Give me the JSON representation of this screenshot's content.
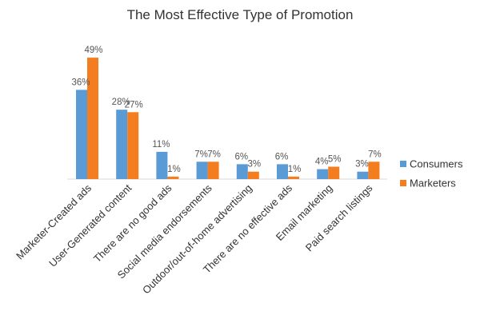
{
  "chart_data": {
    "type": "bar",
    "title": "The Most Effective Type of Promotion",
    "categories": [
      "Marketer-Created ads",
      "User-Generated content",
      "There are no good ads",
      "Social media endorsements",
      "Outdoor/out-of-home advertising",
      "There are no effective ads",
      "Email marketing",
      "Paid search listings"
    ],
    "series": [
      {
        "name": "Consumers",
        "color": "#5B9BD5",
        "values": [
          36,
          28,
          11,
          7,
          6,
          6,
          4,
          3
        ],
        "labels": [
          "36%",
          "28%",
          "11%",
          "7%",
          "6%",
          "6%",
          "4%",
          "3%"
        ]
      },
      {
        "name": "Marketers",
        "color": "#F47D20",
        "values": [
          49,
          27,
          1,
          7,
          3,
          1,
          5,
          7
        ],
        "labels": [
          "49%",
          "27%",
          "1%",
          "7%",
          "3%",
          "1%",
          "5%",
          "7%"
        ]
      }
    ],
    "ylim": [
      0,
      50
    ],
    "grid": false,
    "legend": "right"
  }
}
